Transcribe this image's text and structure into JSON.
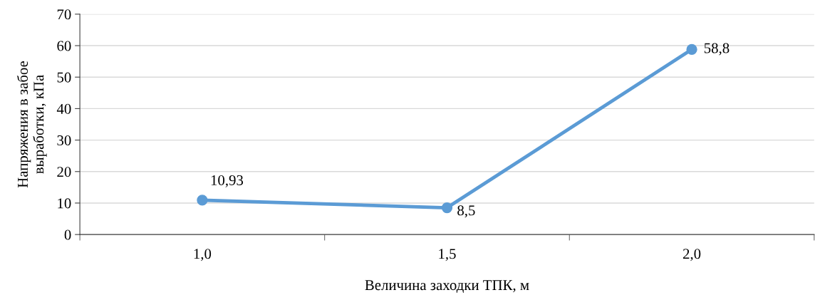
{
  "chart_data": {
    "type": "line",
    "xlabel": "Величина заходки ТПК, м",
    "ylabel": "Напряжения в забое\nвыработки, кПа",
    "categories": [
      "1,0",
      "1,5",
      "2,0"
    ],
    "series": [
      {
        "color": "#5b9bd5",
        "values": [
          10.93,
          8.5,
          58.8
        ],
        "value_labels": [
          "10,93",
          "8,5",
          "58,8"
        ]
      }
    ],
    "ylim": [
      0,
      70
    ],
    "yticks": [
      0,
      10,
      20,
      30,
      40,
      50,
      60,
      70
    ],
    "grid": "y",
    "marker": "circle",
    "line_style": "solid",
    "legend": false
  }
}
